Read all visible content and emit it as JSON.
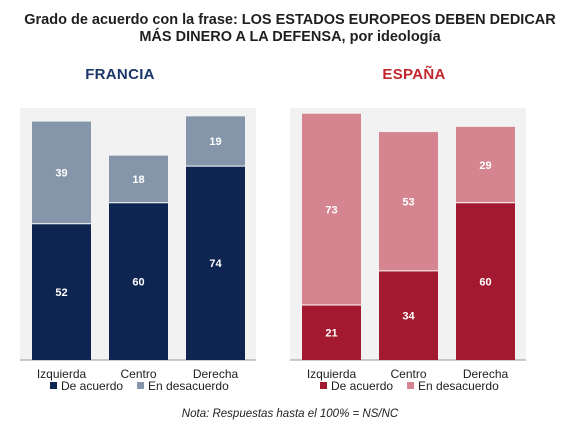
{
  "title_line1": "Grado de acuerdo con la frase: LOS ESTADOS EUROPEOS DEBEN DEDICAR",
  "title_line2": "MÁS DINERO A LA DEFENSA, por ideología",
  "note": "Nota: Respuestas hasta el 100% = NS/NC",
  "colors": {
    "fr_acuerdo": "#0d2550",
    "fr_desacuerdo": "#8596ab",
    "es_acuerdo": "#a3192f",
    "es_desacuerdo": "#d5858f",
    "panel_bg": "#f2f2f2",
    "fr_title": "#1b3768",
    "es_title": "#c1272d"
  },
  "chart_data": [
    {
      "type": "bar",
      "stacked": true,
      "title": "FRANCIA",
      "categories": [
        "Izquierda",
        "Centro",
        "Derecha"
      ],
      "ylim": [
        0,
        100
      ],
      "legend_position": "bottom-left",
      "series": [
        {
          "name": "De acuerdo",
          "values": [
            52,
            60,
            74
          ]
        },
        {
          "name": "En desacuerdo",
          "values": [
            39,
            18,
            19
          ]
        }
      ]
    },
    {
      "type": "bar",
      "stacked": true,
      "title": "ESPAÑA",
      "categories": [
        "Izquierda",
        "Centro",
        "Derecha"
      ],
      "ylim": [
        0,
        100
      ],
      "legend_position": "bottom-left",
      "series": [
        {
          "name": "De acuerdo",
          "values": [
            21,
            34,
            60
          ]
        },
        {
          "name": "En desacuerdo",
          "values": [
            73,
            53,
            29
          ]
        }
      ]
    }
  ]
}
